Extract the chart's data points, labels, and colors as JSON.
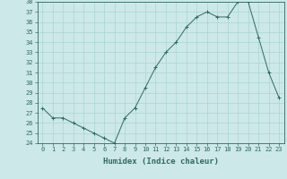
{
  "x": [
    0,
    1,
    2,
    3,
    4,
    5,
    6,
    7,
    8,
    9,
    10,
    11,
    12,
    13,
    14,
    15,
    16,
    17,
    18,
    19,
    20,
    21,
    22,
    23
  ],
  "y": [
    27.5,
    26.5,
    26.5,
    26.0,
    25.5,
    25.0,
    24.5,
    24.0,
    26.5,
    27.5,
    29.5,
    31.5,
    33.0,
    34.0,
    35.5,
    36.5,
    37.0,
    36.5,
    36.5,
    38.0,
    38.0,
    34.5,
    31.0,
    28.5
  ],
  "line_color": "#2e6b5e",
  "marker": "+",
  "marker_color": "#2e6b5e",
  "bg_color": "#cce8e8",
  "grid_color": "#aad4d4",
  "xlabel": "Humidex (Indice chaleur)",
  "xlim": [
    -0.5,
    23.5
  ],
  "ylim": [
    24,
    38
  ],
  "yticks": [
    24,
    25,
    26,
    27,
    28,
    29,
    30,
    31,
    32,
    33,
    34,
    35,
    36,
    37,
    38
  ],
  "xticks": [
    0,
    1,
    2,
    3,
    4,
    5,
    6,
    7,
    8,
    9,
    10,
    11,
    12,
    13,
    14,
    15,
    16,
    17,
    18,
    19,
    20,
    21,
    22,
    23
  ],
  "tick_label_fontsize": 5,
  "xlabel_fontsize": 6.5,
  "axis_color": "#2e6b5e",
  "linewidth": 0.7,
  "markersize": 3,
  "markeredgewidth": 0.7
}
